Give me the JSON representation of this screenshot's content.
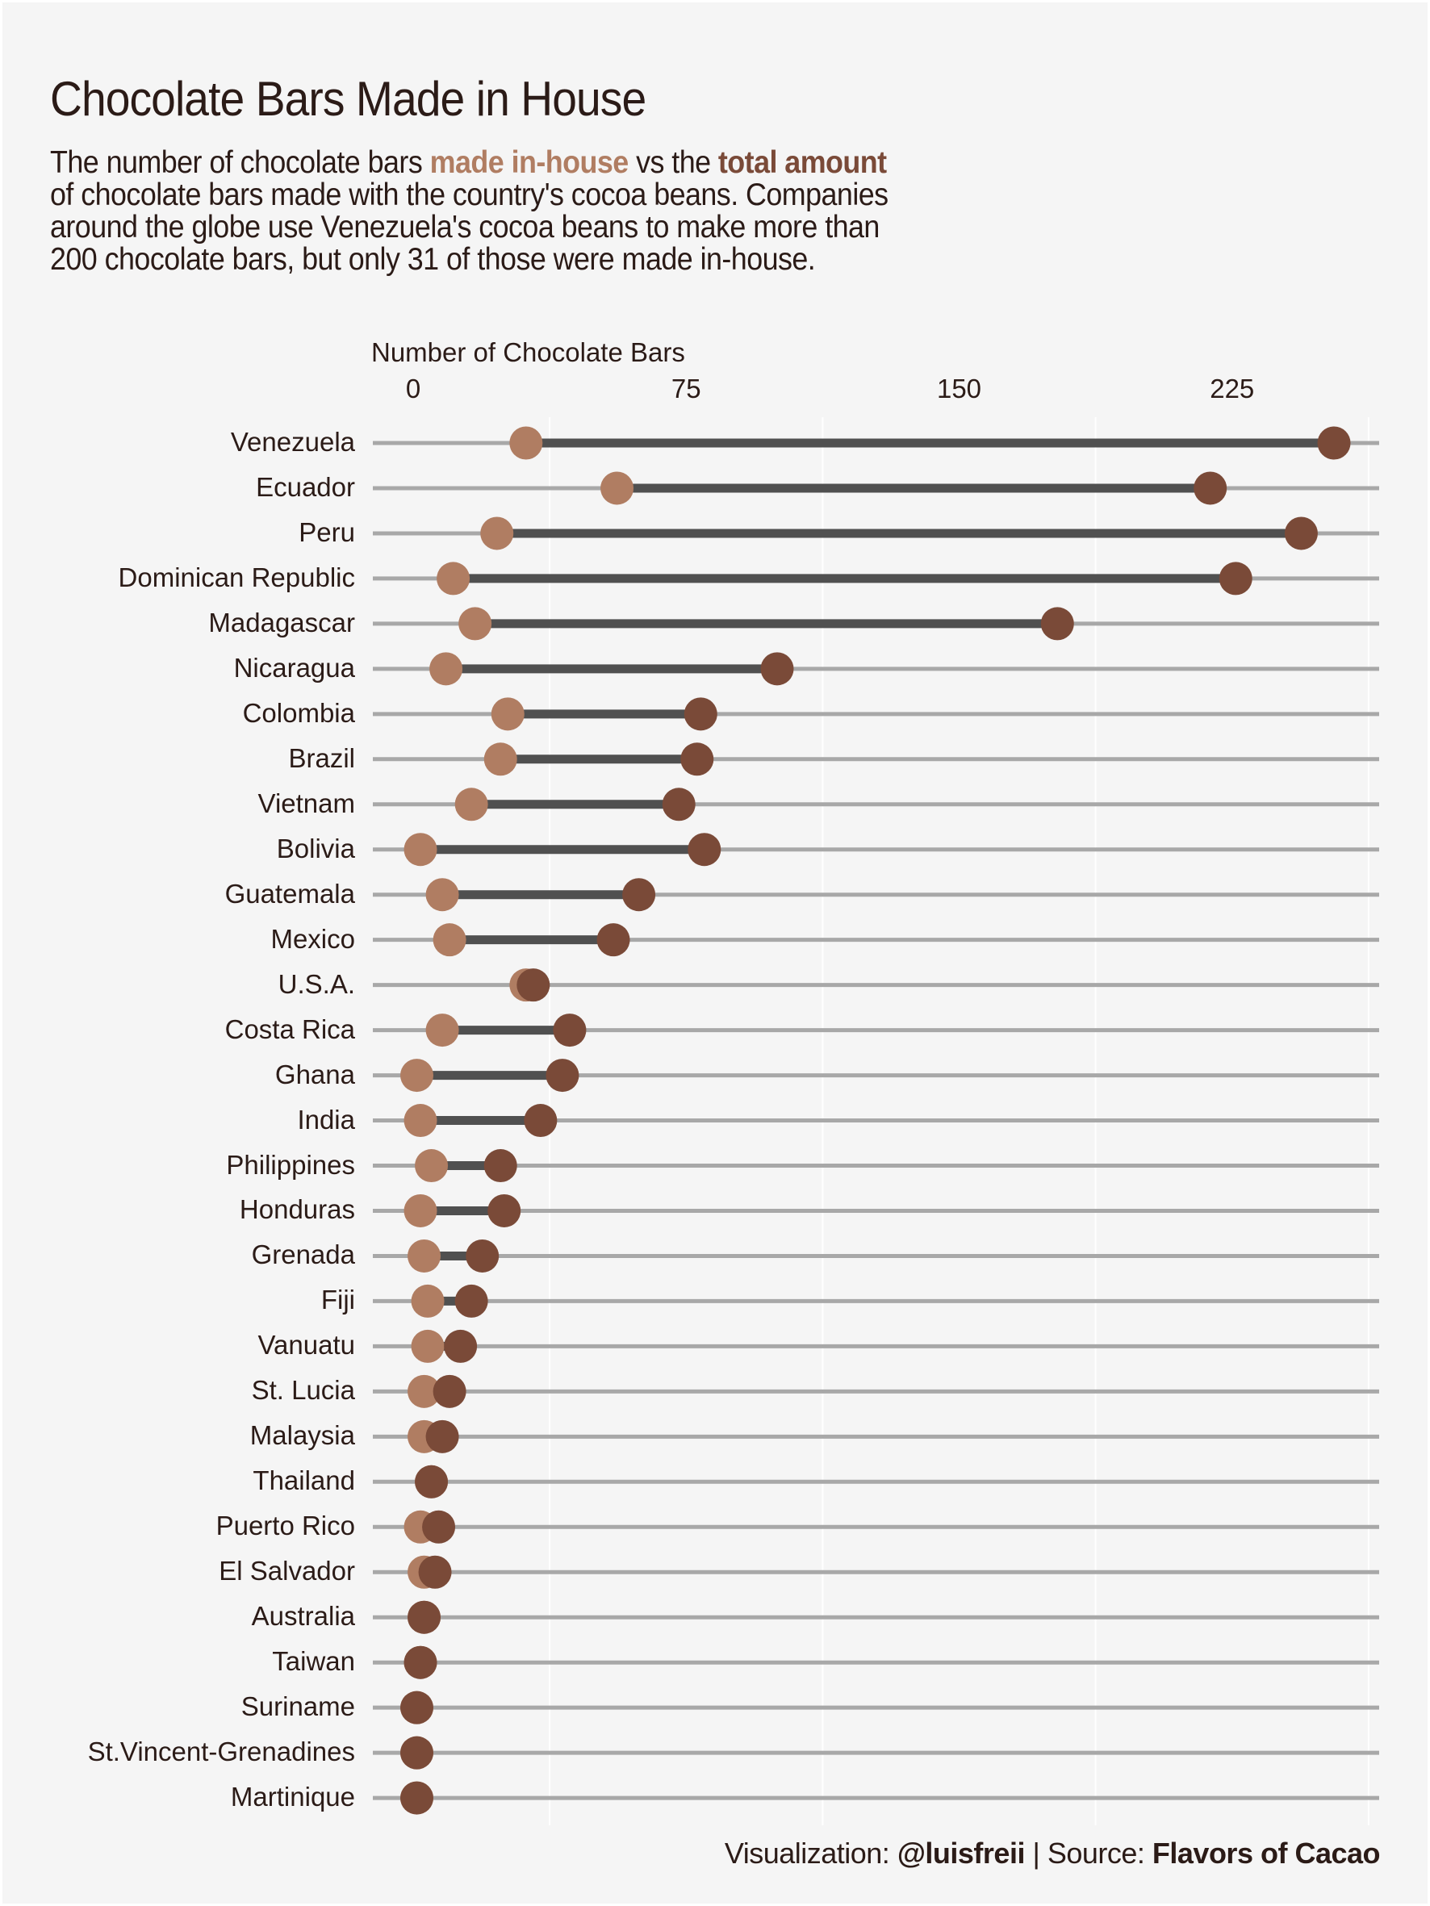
{
  "title": "Chocolate Bars Made in House",
  "subtitle": {
    "line1_prefix": "The number of chocolate bars ",
    "line1_highlight_inhouse": "made in-house",
    "line1_middle": " vs the ",
    "line1_highlight_total": "total amount",
    "line2": "of chocolate bars made with the country's cocoa beans. Companies",
    "line3": "around the globe use Venezuela's cocoa beans to make more than",
    "line4": "200 chocolate bars, but only 31 of those were made in-house."
  },
  "footer": {
    "viz_label": "Visualization: ",
    "viz_author": "@luisfreii",
    "separator": " | ",
    "source_label": "Source: ",
    "source_name": "Flavors of Cacao"
  },
  "colors": {
    "background": "#F5F5F5",
    "in_house": "#B07D62",
    "total": "#7A4A38",
    "segment": "#505050",
    "track": "#A8A8A8",
    "gridline": "#FFFFFF",
    "text": "#2B1B17"
  },
  "chart_data": {
    "type": "dumbbell",
    "title": "Chocolate Bars Made in House",
    "xlabel": "Number of Chocolate Bars",
    "ylabel": "",
    "xlim": [
      -10,
      265
    ],
    "x_ticks": [
      0,
      75,
      150,
      225
    ],
    "x_tick_labels": [
      "0",
      "75",
      "150",
      "225"
    ],
    "x_axis_position": "top",
    "grid": "vertical minor gridlines",
    "series": [
      {
        "name": "made in-house",
        "color": "#B07D62"
      },
      {
        "name": "total amount",
        "color": "#7A4A38"
      }
    ],
    "categories": [
      "Venezuela",
      "Ecuador",
      "Peru",
      "Dominican Republic",
      "Madagascar",
      "Nicaragua",
      "Colombia",
      "Brazil",
      "Vietnam",
      "Bolivia",
      "Guatemala",
      "Mexico",
      "U.S.A.",
      "Costa Rica",
      "Ghana",
      "India",
      "Philippines",
      "Honduras",
      "Grenada",
      "Fiji",
      "Vanuatu",
      "St. Lucia",
      "Malaysia",
      "Thailand",
      "Puerto Rico",
      "El Salvador",
      "Australia",
      "Taiwan",
      "Suriname",
      "St.Vincent-Grenadines",
      "Martinique"
    ],
    "in_house": [
      31,
      56,
      23,
      11,
      17,
      9,
      26,
      24,
      16,
      2,
      8,
      10,
      31,
      8,
      1,
      2,
      5,
      2,
      3,
      4,
      4,
      3,
      3,
      5,
      2,
      3,
      3,
      2,
      1,
      1,
      1
    ],
    "total": [
      253,
      219,
      244,
      226,
      177,
      100,
      79,
      78,
      73,
      80,
      62,
      55,
      33,
      43,
      41,
      35,
      24,
      25,
      19,
      16,
      13,
      10,
      8,
      5,
      7,
      6,
      3,
      2,
      1,
      1,
      1
    ]
  }
}
